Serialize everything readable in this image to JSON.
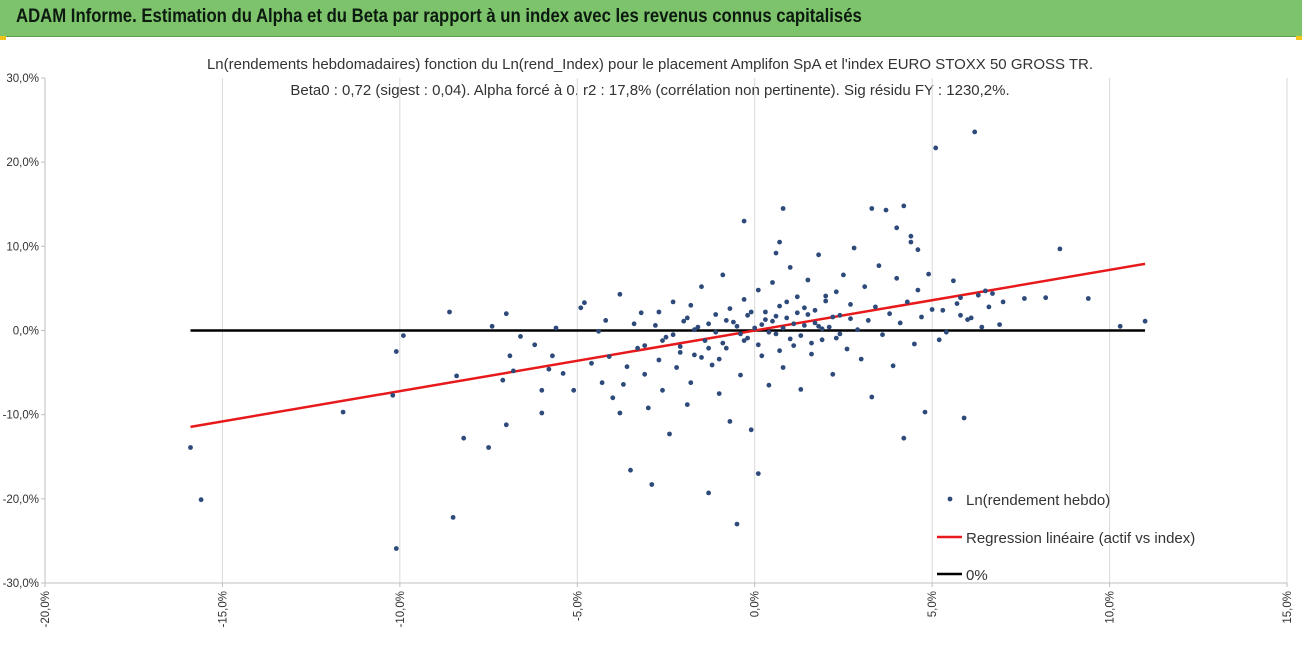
{
  "header": {
    "title": "ADAM Informe. Estimation du Alpha et du Beta par rapport à un index avec les revenus connus capitalisés"
  },
  "colors": {
    "header_bg": "#7dc36b",
    "points": "#2d4a7a",
    "regression": "#e8191b",
    "zero_line": "#000000",
    "grid": "#d9d9d9"
  },
  "chart_data": {
    "type": "scatter",
    "title_line1": "Ln(rendements hebdomadaires) fonction du Ln(rend_Index) pour le placement Amplifon SpA et l'index EURO STOXX 50 GROSS TR.",
    "title_line2": "Beta0 : 0,72 (sigest : 0,04). Alpha forcé à 0. r2 : 17,8% (corrélation non pertinente). Sig résidu FY : 1230,2%.",
    "xlim": [
      -0.2,
      0.15
    ],
    "ylim": [
      -0.3,
      0.3
    ],
    "x_ticks": [
      -0.2,
      -0.15,
      -0.1,
      -0.05,
      0.0,
      0.05,
      0.1,
      0.15
    ],
    "x_tick_labels": [
      "-20,0%",
      "-15,0%",
      "-10,0%",
      "-5,0%",
      "0,0%",
      "5,0%",
      "10,0%",
      "15,0%"
    ],
    "y_ticks": [
      0.3,
      0.2,
      0.1,
      0.0,
      -0.1,
      -0.2,
      -0.3
    ],
    "y_tick_labels": [
      "30,0%",
      "20,0%",
      "10,0%",
      "0,0%",
      "-10,0%",
      "-20,0%",
      "-30,0%"
    ],
    "grid": "vertical",
    "legend_position": "bottom-right",
    "series": [
      {
        "name": "Ln(rendement hebdo)",
        "kind": "scatter",
        "color": "#2d4a7a",
        "points": [
          [
            -0.159,
            -0.139
          ],
          [
            -0.156,
            -0.201
          ],
          [
            -0.116,
            -0.097
          ],
          [
            -0.102,
            -0.077
          ],
          [
            -0.101,
            -0.259
          ],
          [
            -0.101,
            -0.025
          ],
          [
            -0.099,
            -0.006
          ],
          [
            -0.086,
            0.022
          ],
          [
            -0.085,
            -0.222
          ],
          [
            -0.084,
            -0.054
          ],
          [
            -0.082,
            -0.128
          ],
          [
            -0.075,
            -0.139
          ],
          [
            -0.074,
            0.005
          ],
          [
            -0.071,
            -0.059
          ],
          [
            -0.07,
            0.02
          ],
          [
            -0.07,
            -0.112
          ],
          [
            -0.069,
            -0.03
          ],
          [
            -0.068,
            -0.048
          ],
          [
            -0.066,
            -0.007
          ],
          [
            -0.062,
            -0.017
          ],
          [
            -0.06,
            -0.098
          ],
          [
            -0.06,
            -0.071
          ],
          [
            -0.058,
            -0.046
          ],
          [
            -0.057,
            -0.03
          ],
          [
            -0.056,
            0.003
          ],
          [
            -0.054,
            -0.051
          ],
          [
            -0.051,
            -0.071
          ],
          [
            -0.049,
            0.027
          ],
          [
            -0.048,
            0.033
          ],
          [
            -0.046,
            -0.039
          ],
          [
            -0.044,
            -0.001
          ],
          [
            -0.043,
            -0.062
          ],
          [
            -0.042,
            0.012
          ],
          [
            -0.041,
            -0.031
          ],
          [
            -0.04,
            -0.08
          ],
          [
            -0.038,
            0.043
          ],
          [
            -0.038,
            -0.098
          ],
          [
            -0.037,
            -0.064
          ],
          [
            -0.036,
            -0.043
          ],
          [
            -0.035,
            -0.166
          ],
          [
            -0.034,
            0.008
          ],
          [
            -0.033,
            -0.021
          ],
          [
            -0.032,
            0.021
          ],
          [
            -0.031,
            -0.052
          ],
          [
            -0.03,
            -0.092
          ],
          [
            -0.029,
            -0.183
          ],
          [
            -0.028,
            0.006
          ],
          [
            -0.027,
            -0.035
          ],
          [
            -0.026,
            -0.071
          ],
          [
            -0.025,
            -0.008
          ],
          [
            -0.024,
            -0.123
          ],
          [
            -0.023,
            0.034
          ],
          [
            -0.022,
            -0.044
          ],
          [
            -0.021,
            -0.019
          ],
          [
            -0.02,
            0.011
          ],
          [
            -0.019,
            -0.088
          ],
          [
            -0.018,
            -0.062
          ],
          [
            -0.017,
            -0.029
          ],
          [
            -0.016,
            0.004
          ],
          [
            -0.015,
            0.052
          ],
          [
            -0.014,
            -0.012
          ],
          [
            -0.013,
            -0.193
          ],
          [
            -0.012,
            -0.041
          ],
          [
            -0.011,
            0.019
          ],
          [
            -0.01,
            -0.075
          ],
          [
            -0.009,
            0.066
          ],
          [
            -0.008,
            -0.021
          ],
          [
            -0.007,
            -0.108
          ],
          [
            -0.006,
            0.01
          ],
          [
            -0.005,
            -0.23
          ],
          [
            -0.004,
            -0.053
          ],
          [
            -0.003,
            0.037
          ],
          [
            -0.002,
            -0.009
          ],
          [
            -0.001,
            -0.118
          ],
          [
            0.0,
            0.003
          ],
          [
            0.001,
            0.048
          ],
          [
            0.002,
            -0.03
          ],
          [
            0.003,
            0.022
          ],
          [
            0.004,
            -0.065
          ],
          [
            0.005,
            0.057
          ],
          [
            0.006,
            -0.004
          ],
          [
            0.007,
            0.029
          ],
          [
            0.008,
            -0.044
          ],
          [
            0.009,
            0.015
          ],
          [
            0.01,
            0.075
          ],
          [
            0.011,
            -0.018
          ],
          [
            0.012,
            0.04
          ],
          [
            0.013,
            -0.07
          ],
          [
            0.014,
            0.006
          ],
          [
            0.015,
            0.06
          ],
          [
            0.016,
            -0.028
          ],
          [
            0.017,
            0.024
          ],
          [
            0.018,
            0.09
          ],
          [
            0.019,
            -0.011
          ],
          [
            0.02,
            0.035
          ],
          [
            0.021,
            0.004
          ],
          [
            0.022,
            -0.052
          ],
          [
            0.023,
            0.046
          ],
          [
            0.024,
            0.018
          ],
          [
            0.025,
            0.066
          ],
          [
            0.026,
            -0.022
          ],
          [
            0.027,
            0.031
          ],
          [
            0.028,
            0.098
          ],
          [
            0.029,
            0.001
          ],
          [
            0.03,
            -0.034
          ],
          [
            0.031,
            0.052
          ],
          [
            0.032,
            0.012
          ],
          [
            0.033,
            -0.079
          ],
          [
            0.034,
            0.028
          ],
          [
            0.035,
            0.077
          ],
          [
            0.036,
            -0.005
          ],
          [
            0.037,
            0.143
          ],
          [
            0.038,
            0.02
          ],
          [
            0.039,
            -0.042
          ],
          [
            0.04,
            0.062
          ],
          [
            0.041,
            0.009
          ],
          [
            0.042,
            -0.128
          ],
          [
            0.043,
            0.034
          ],
          [
            0.044,
            0.105
          ],
          [
            0.045,
            -0.016
          ],
          [
            0.046,
            0.048
          ],
          [
            0.047,
            0.016
          ],
          [
            0.048,
            -0.097
          ],
          [
            0.049,
            0.067
          ],
          [
            0.05,
            0.025
          ],
          [
            -0.031,
            -0.018
          ],
          [
            -0.027,
            0.022
          ],
          [
            -0.023,
            -0.005
          ],
          [
            -0.019,
            0.015
          ],
          [
            -0.015,
            -0.032
          ],
          [
            -0.011,
            -0.002
          ],
          [
            -0.007,
            0.026
          ],
          [
            -0.003,
            -0.012
          ],
          [
            0.003,
            0.013
          ],
          [
            0.007,
            -0.024
          ],
          [
            0.011,
            0.008
          ],
          [
            0.015,
            0.019
          ],
          [
            0.019,
            0.002
          ],
          [
            0.023,
            -0.009
          ],
          [
            0.027,
            0.014
          ],
          [
            -0.021,
            -0.026
          ],
          [
            -0.013,
            0.008
          ],
          [
            -0.009,
            -0.015
          ],
          [
            -0.005,
            0.005
          ],
          [
            -0.001,
            0.022
          ],
          [
            0.001,
            -0.017
          ],
          [
            0.005,
            0.011
          ],
          [
            0.009,
            0.034
          ],
          [
            0.013,
            -0.006
          ],
          [
            0.017,
            0.009
          ],
          [
            -0.017,
            0.001
          ],
          [
            -0.013,
            -0.021
          ],
          [
            -0.008,
            0.012
          ],
          [
            -0.004,
            -0.004
          ],
          [
            0.002,
            0.007
          ],
          [
            0.006,
            0.017
          ],
          [
            0.01,
            -0.01
          ],
          [
            0.014,
            0.027
          ],
          [
            0.018,
            0.005
          ],
          [
            0.022,
            0.016
          ],
          [
            -0.026,
            -0.012
          ],
          [
            -0.018,
            0.03
          ],
          [
            -0.01,
            -0.034
          ],
          [
            -0.002,
            0.018
          ],
          [
            0.004,
            -0.002
          ],
          [
            0.008,
            0.003
          ],
          [
            0.012,
            0.021
          ],
          [
            0.016,
            -0.015
          ],
          [
            0.02,
            0.041
          ],
          [
            0.024,
            -0.004
          ],
          [
            0.051,
            0.217
          ],
          [
            0.056,
            0.059
          ],
          [
            0.057,
            0.032
          ],
          [
            0.059,
            -0.104
          ],
          [
            0.06,
            0.013
          ],
          [
            0.062,
            0.236
          ],
          [
            0.063,
            0.042
          ],
          [
            0.066,
            0.028
          ],
          [
            0.067,
            0.044
          ],
          [
            0.069,
            0.007
          ],
          [
            0.076,
            0.038
          ],
          [
            0.082,
            0.039
          ],
          [
            0.086,
            0.097
          ],
          [
            0.094,
            0.038
          ],
          [
            0.103,
            0.005
          ],
          [
            0.11,
            0.011
          ],
          [
            0.054,
            -0.002
          ],
          [
            0.053,
            0.024
          ],
          [
            0.058,
            0.018
          ],
          [
            0.064,
            0.004
          ],
          [
            0.052,
            -0.011
          ],
          [
            0.058,
            0.039
          ],
          [
            0.061,
            0.015
          ],
          [
            0.065,
            0.047
          ],
          [
            0.07,
            0.034
          ],
          [
            -0.003,
            0.13
          ],
          [
            0.001,
            -0.17
          ],
          [
            0.008,
            0.145
          ],
          [
            0.007,
            0.105
          ],
          [
            0.006,
            0.092
          ],
          [
            0.033,
            0.145
          ],
          [
            0.042,
            0.148
          ],
          [
            0.044,
            0.112
          ],
          [
            0.04,
            0.122
          ],
          [
            0.046,
            0.096
          ]
        ]
      },
      {
        "name": "Regression linéaire (actif vs index)",
        "kind": "line",
        "color": "#e8191b",
        "points": [
          [
            -0.159,
            -0.1145
          ],
          [
            0.11,
            0.0792
          ]
        ]
      },
      {
        "name": "0%",
        "kind": "line",
        "color": "#000000",
        "points": [
          [
            -0.159,
            0.0
          ],
          [
            0.11,
            0.0
          ]
        ]
      }
    ]
  }
}
